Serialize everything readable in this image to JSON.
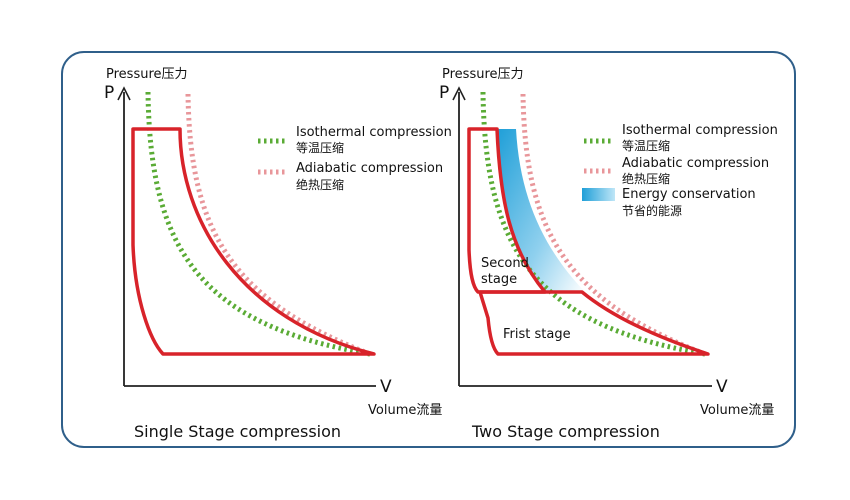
{
  "left_panel": {
    "y_axis_label": "Pressure压力",
    "y_axis_symbol": "P",
    "x_axis_label": "Volume流量",
    "x_axis_symbol": "V",
    "caption": "Single Stage compression",
    "legend": [
      {
        "label_en": "Isothermal compression",
        "label_cn": "等温压缩",
        "color": "#5aab35",
        "style": "dotted"
      },
      {
        "label_en": "Adiabatic compression",
        "label_cn": "绝热压缩",
        "color": "#e8969a",
        "style": "dotted"
      }
    ]
  },
  "right_panel": {
    "y_axis_label": "Pressure压力",
    "y_axis_symbol": "P",
    "x_axis_label": "Volume流量",
    "x_axis_symbol": "V",
    "caption": "Two Stage compression",
    "stage_second_line1": "Second",
    "stage_second_line2": "stage",
    "stage_first": "Frist stage",
    "legend": [
      {
        "label_en": "Isothermal compression",
        "label_cn": "等温压缩",
        "color": "#5aab35",
        "style": "dotted"
      },
      {
        "label_en": "Adiabatic compression",
        "label_cn": "绝热压缩",
        "color": "#e8969a",
        "style": "dotted"
      },
      {
        "label_en": "Energy conservation",
        "label_cn": "节省的能源",
        "color": "#2aa6dc",
        "style": "gradient"
      }
    ]
  },
  "colors": {
    "frame_border": "#2f5f8a",
    "cycle": "#d8232a",
    "isothermal": "#5aab35",
    "adiabatic": "#e8969a",
    "energy": "#2aa6dc",
    "axis": "#222222"
  }
}
